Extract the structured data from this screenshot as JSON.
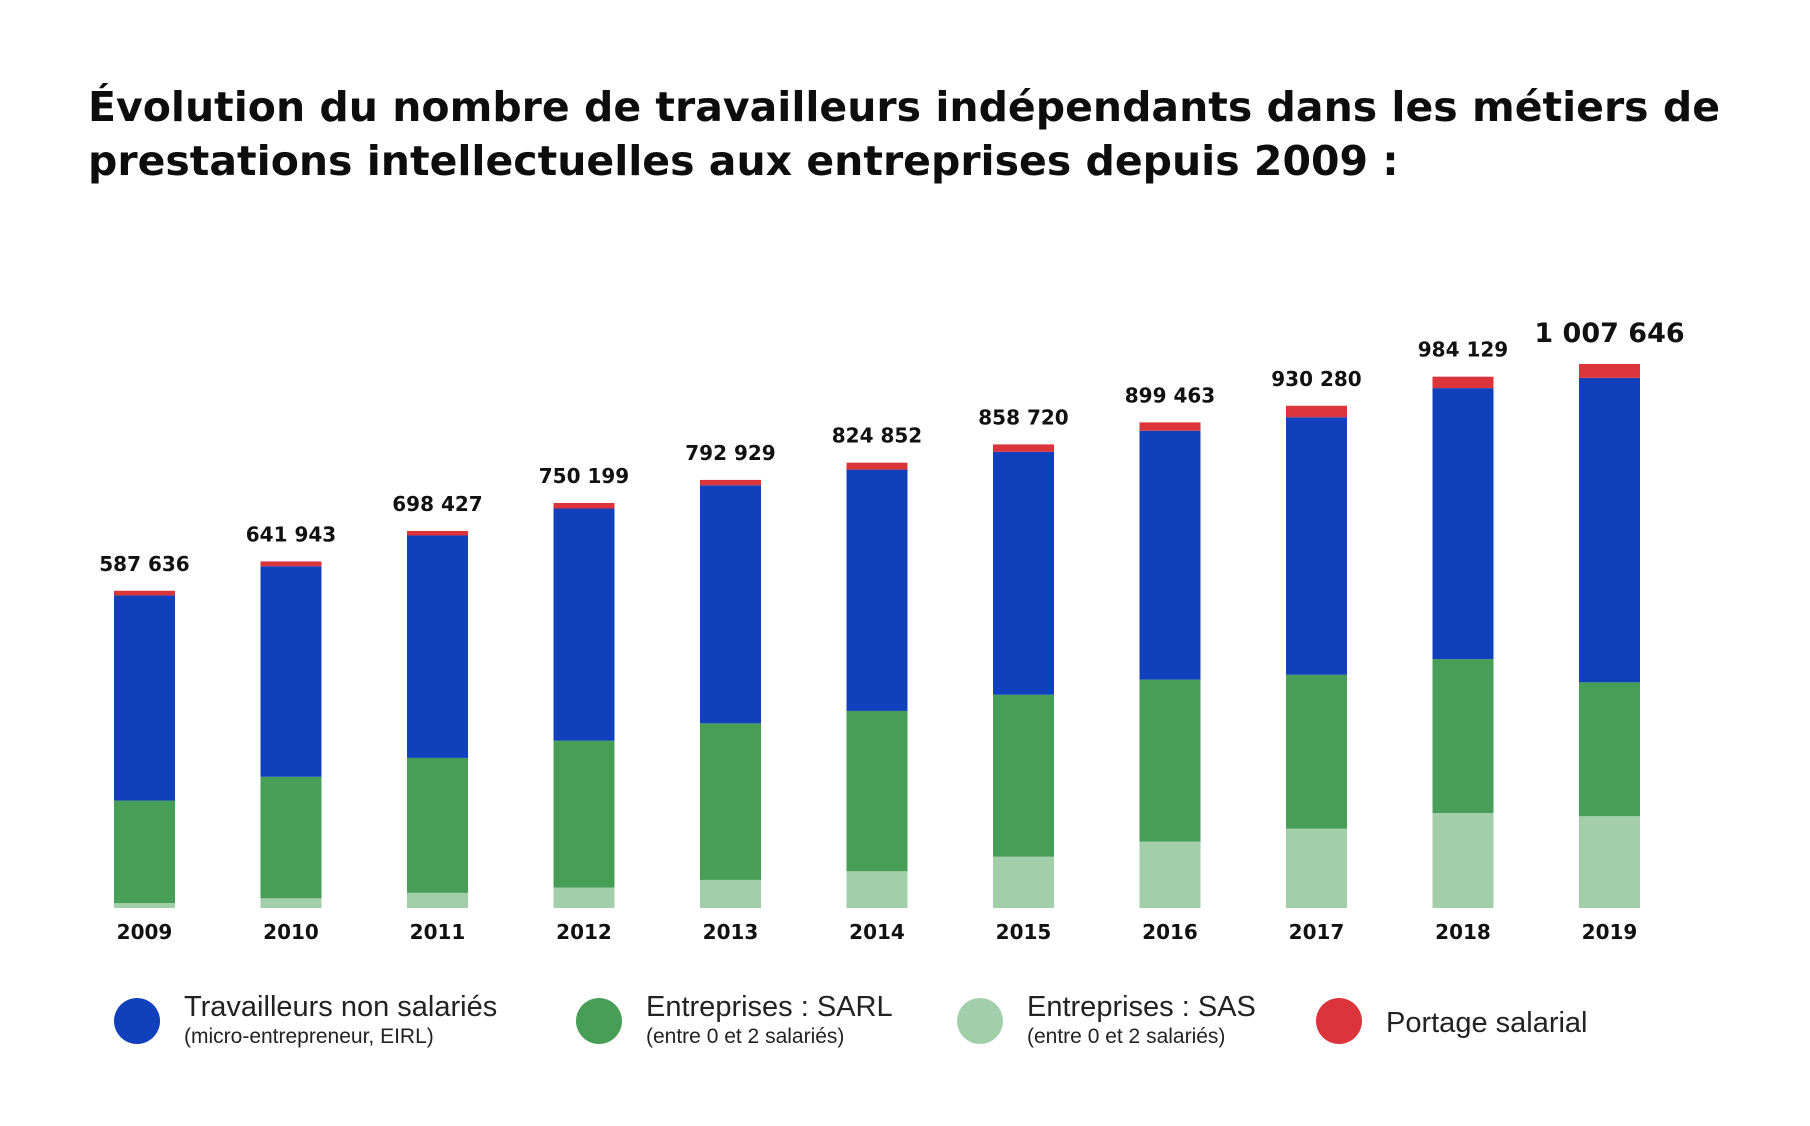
{
  "chart_data": {
    "type": "bar",
    "stacked": true,
    "title": "Évolution du nombre de travailleurs indépendants dans les métiers de prestations intellectuelles aux entreprises depuis 2009 :",
    "categories": [
      "2009",
      "2010",
      "2011",
      "2012",
      "2013",
      "2014",
      "2015",
      "2016",
      "2017",
      "2018",
      "2019"
    ],
    "totals": [
      "587 636",
      "641 943",
      "698 427",
      "750 199",
      "792 929",
      "824 852",
      "858 720",
      "899 463",
      "930 280",
      "984 129",
      "1 007 646"
    ],
    "total_values": [
      587636,
      641943,
      698427,
      750199,
      792929,
      824852,
      858720,
      899463,
      930280,
      984129,
      1007646
    ],
    "series": [
      {
        "name": "Entreprises : SAS",
        "note": "(entre 0 et 2 salariés)",
        "color": "#a2cfaa",
        "values": [
          9000,
          18000,
          28000,
          38000,
          52000,
          68000,
          95000,
          123000,
          147000,
          176000,
          170000
        ]
      },
      {
        "name": "Entreprises : SARL",
        "note": "(entre 0 et 2 salariés)",
        "color": "#469e57",
        "values": [
          190000,
          225000,
          250000,
          272000,
          290000,
          297000,
          300000,
          300000,
          285000,
          285000,
          248000
        ]
      },
      {
        "name": "Travailleurs non salariés",
        "note": "(micro-entrepreneur, EIRL)",
        "color": "#1140bd",
        "values": [
          380000,
          390000,
          412000,
          430000,
          441000,
          447000,
          450000,
          461000,
          477000,
          502000,
          564000
        ]
      },
      {
        "name": "Portage salarial",
        "note": "",
        "color": "#db343a",
        "values": [
          8636,
          8943,
          8427,
          10199,
          9929,
          12852,
          13720,
          15463,
          21280,
          21129,
          25646
        ]
      }
    ],
    "ylim": [
      0,
      1007646
    ],
    "grid": false,
    "legend_position": "bottom"
  }
}
